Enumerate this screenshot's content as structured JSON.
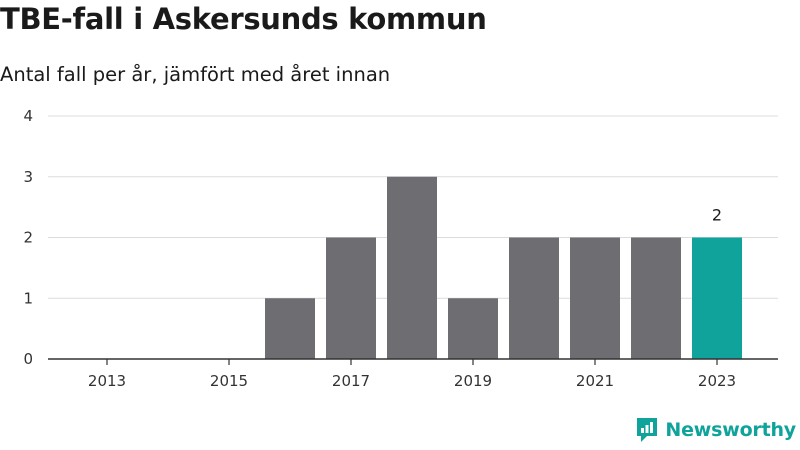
{
  "title": "TBE-fall i Askersunds kommun",
  "subtitle": "Antal fall per år, jämfört med året innan",
  "brand": {
    "name": "Newsworthy",
    "icon": "newsworthy-logo-icon",
    "color": "#0fa39b"
  },
  "chart_data": {
    "type": "bar",
    "x": [
      2013,
      2014,
      2015,
      2016,
      2017,
      2018,
      2019,
      2020,
      2021,
      2022,
      2023
    ],
    "values": [
      0,
      0,
      0,
      1,
      2,
      3,
      1,
      2,
      2,
      2,
      2
    ],
    "x_tick_labels": [
      "2013",
      "2015",
      "2017",
      "2019",
      "2021",
      "2023"
    ],
    "y_ticks": [
      0,
      1,
      2,
      3,
      4
    ],
    "ylim": [
      0,
      4
    ],
    "grid": true,
    "bar_color": "#6d6d72",
    "highlight_color": "#0fa39b",
    "highlight_index": 10,
    "data_labels": [
      {
        "index": 10,
        "text": "2"
      }
    ]
  }
}
